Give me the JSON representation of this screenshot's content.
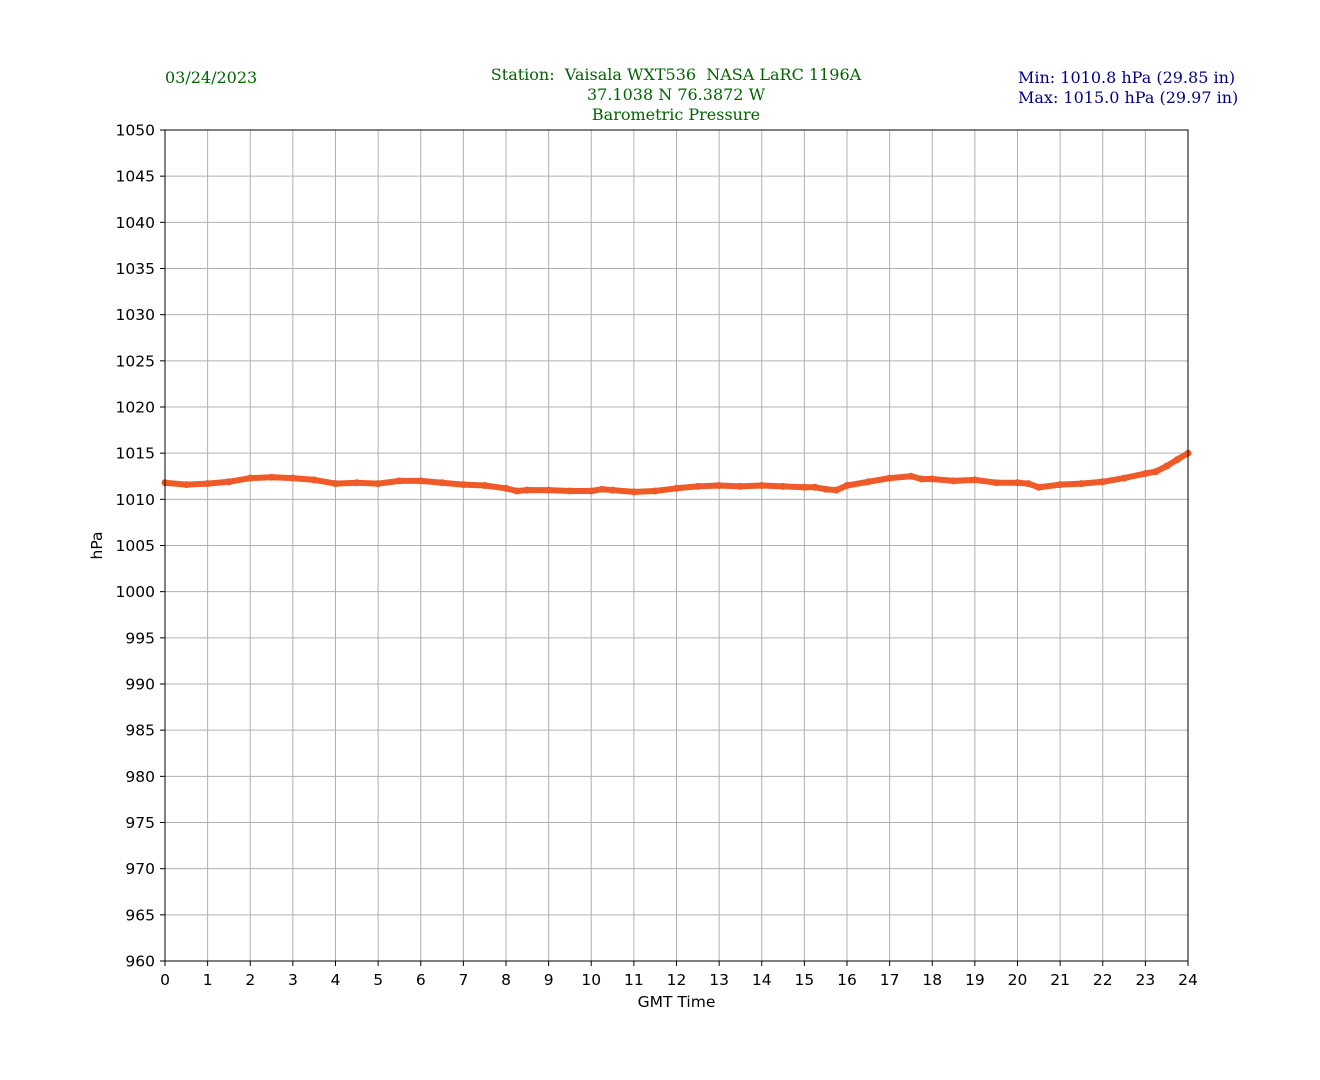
{
  "header": {
    "date": "03/24/2023",
    "station_line": "Station:  Vaisala WXT536  NASA LaRC 1196A",
    "coords_line": "37.1038 N 76.3872 W",
    "measure_line": "Barometric Pressure",
    "min_line": "Min: 1010.8 hPa (29.85 in)",
    "max_line": "Max: 1015.0 hPa (29.97 in)",
    "colors": {
      "station_text": "#006400",
      "minmax_text": "#00008b"
    }
  },
  "chart_data": {
    "type": "line",
    "xlabel": "GMT Time",
    "ylabel": "hPa",
    "xlim": [
      0,
      24
    ],
    "ylim": [
      960,
      1050
    ],
    "xticks": [
      "0",
      "1",
      "2",
      "3",
      "4",
      "5",
      "6",
      "7",
      "8",
      "9",
      "10",
      "11",
      "12",
      "13",
      "14",
      "15",
      "16",
      "17",
      "18",
      "19",
      "20",
      "21",
      "22",
      "23",
      "24"
    ],
    "yticks": [
      "960",
      "965",
      "970",
      "975",
      "980",
      "985",
      "990",
      "995",
      "1000",
      "1005",
      "1010",
      "1015",
      "1020",
      "1025",
      "1030",
      "1035",
      "1040",
      "1045",
      "1050"
    ],
    "grid": true,
    "series": [
      {
        "color": "#f05a28",
        "x": [
          0,
          0.5,
          1,
          1.5,
          2,
          2.5,
          3,
          3.5,
          4,
          4.5,
          5,
          5.5,
          6,
          6.5,
          7,
          7.5,
          8,
          8.25,
          8.5,
          9,
          9.5,
          10,
          10.25,
          10.5,
          11,
          11.5,
          12,
          12.5,
          13,
          13.5,
          14,
          14.5,
          15,
          15.25,
          15.5,
          15.75,
          16,
          16.5,
          17,
          17.5,
          17.75,
          18,
          18.5,
          19,
          19.5,
          20,
          20.25,
          20.5,
          21,
          21.5,
          22,
          22.5,
          23,
          23.25,
          23.5,
          23.75,
          24
        ],
        "values": [
          1011.8,
          1011.6,
          1011.7,
          1011.9,
          1012.3,
          1012.4,
          1012.3,
          1012.1,
          1011.7,
          1011.8,
          1011.7,
          1012.0,
          1012.0,
          1011.8,
          1011.6,
          1011.5,
          1011.2,
          1010.9,
          1011.0,
          1011.0,
          1010.9,
          1010.9,
          1011.1,
          1011.0,
          1010.8,
          1010.9,
          1011.2,
          1011.4,
          1011.5,
          1011.4,
          1011.5,
          1011.4,
          1011.3,
          1011.3,
          1011.1,
          1011.0,
          1011.5,
          1011.9,
          1012.3,
          1012.5,
          1012.2,
          1012.2,
          1012.0,
          1012.1,
          1011.8,
          1011.8,
          1011.7,
          1011.3,
          1011.6,
          1011.7,
          1011.9,
          1012.3,
          1012.8,
          1013.0,
          1013.6,
          1014.3,
          1015.0
        ]
      }
    ]
  }
}
